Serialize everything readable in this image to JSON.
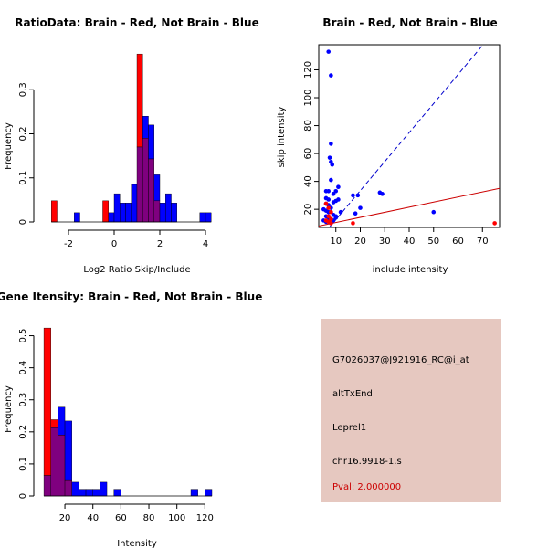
{
  "colors": {
    "brain": "#ff0000",
    "not_brain": "#0000ff",
    "overlap": "#7f007f",
    "info_bg": "#e6c8c0",
    "pval_text": "#cc0000",
    "fit_red": "#cc0000",
    "fit_blue": "#0000cc"
  },
  "chart_data": [
    {
      "id": "ratio_hist",
      "type": "histogram",
      "title": "RatioData: Brain - Red, Not Brain - Blue",
      "xlabel": "Log2 Ratio Skip/Include",
      "ylabel": "Frequency",
      "xlim": [
        -3.2,
        4.8
      ],
      "ylim": [
        0,
        0.4
      ],
      "xticks": [
        -2,
        0,
        2,
        4
      ],
      "yticks": [
        0,
        0.1,
        0.2,
        0.3
      ],
      "bin_width": 0.25,
      "series": [
        {
          "name": "Brain",
          "color": "red",
          "bins": [
            [
              -2.75,
              0.048
            ],
            [
              -0.5,
              0.048
            ],
            [
              1.0,
              0.381
            ],
            [
              1.25,
              0.19
            ],
            [
              1.5,
              0.143
            ],
            [
              1.75,
              0.048
            ]
          ]
        },
        {
          "name": "Not Brain",
          "color": "blue",
          "bins": [
            [
              -1.75,
              0.021
            ],
            [
              -0.25,
              0.021
            ],
            [
              0.0,
              0.064
            ],
            [
              0.25,
              0.043
            ],
            [
              0.5,
              0.043
            ],
            [
              0.75,
              0.085
            ],
            [
              1.0,
              0.17
            ],
            [
              1.25,
              0.24
            ],
            [
              1.5,
              0.22
            ],
            [
              1.75,
              0.107
            ],
            [
              2.0,
              0.043
            ],
            [
              2.25,
              0.064
            ],
            [
              2.5,
              0.043
            ],
            [
              3.75,
              0.021
            ],
            [
              4.0,
              0.021
            ]
          ]
        }
      ]
    },
    {
      "id": "intensity_scatter",
      "type": "scatter",
      "title": "Brain - Red, Not Brain - Blue",
      "xlabel": "include intensity",
      "ylabel": "skip intensity",
      "xlim": [
        3,
        77
      ],
      "ylim": [
        7,
        138
      ],
      "xticks": [
        10,
        20,
        30,
        40,
        50,
        60,
        70
      ],
      "yticks": [
        20,
        40,
        60,
        80,
        100,
        120
      ],
      "series": [
        {
          "name": "Not Brain",
          "color": "blue",
          "points": [
            [
              7,
              133
            ],
            [
              8,
              116
            ],
            [
              8,
              67
            ],
            [
              7.5,
              57
            ],
            [
              8,
              54
            ],
            [
              8.5,
              52
            ],
            [
              8,
              41
            ],
            [
              6,
              33
            ],
            [
              7,
              33
            ],
            [
              6,
              28
            ],
            [
              7,
              27
            ],
            [
              9,
              31
            ],
            [
              10,
              33
            ],
            [
              11,
              36
            ],
            [
              6,
              24
            ],
            [
              7,
              23
            ],
            [
              8,
              21
            ],
            [
              9,
              25
            ],
            [
              10,
              26
            ],
            [
              11,
              27
            ],
            [
              5,
              20
            ],
            [
              6,
              19
            ],
            [
              7,
              18
            ],
            [
              8,
              18
            ],
            [
              9,
              16
            ],
            [
              10,
              15
            ],
            [
              6,
              15
            ],
            [
              7,
              14
            ],
            [
              8,
              13
            ],
            [
              5,
              12
            ],
            [
              6,
              11
            ],
            [
              7,
              11
            ],
            [
              8,
              10
            ],
            [
              9,
              12
            ],
            [
              10,
              14
            ],
            [
              12,
              18
            ],
            [
              17,
              30
            ],
            [
              19,
              30
            ],
            [
              18,
              17
            ],
            [
              20,
              21
            ],
            [
              28,
              32
            ],
            [
              29,
              31
            ],
            [
              50,
              18
            ]
          ]
        },
        {
          "name": "Brain",
          "color": "red",
          "points": [
            [
              6,
              24
            ],
            [
              7,
              21
            ],
            [
              8,
              18
            ],
            [
              7,
              15
            ],
            [
              8,
              13
            ],
            [
              6,
              12
            ],
            [
              7,
              11
            ],
            [
              8,
              10
            ],
            [
              17,
              10
            ],
            [
              75,
              10
            ]
          ]
        }
      ],
      "fit_lines": [
        {
          "name": "Not Brain fit",
          "color": "blue",
          "style": "dashed",
          "from": [
            3,
            -2
          ],
          "to": [
            77,
            152
          ]
        },
        {
          "name": "Brain fit",
          "color": "red",
          "style": "solid",
          "from": [
            3,
            8
          ],
          "to": [
            77,
            35
          ]
        }
      ]
    },
    {
      "id": "intensity_hist",
      "type": "histogram",
      "title": "Gene Itensity: Brain - Red, Not Brain - Blue",
      "xlabel": "Intensity",
      "ylabel": "Frequency",
      "xlim": [
        3,
        140
      ],
      "ylim": [
        0,
        0.55
      ],
      "xticks": [
        20,
        40,
        60,
        80,
        100,
        120
      ],
      "yticks": [
        0,
        0.1,
        0.2,
        0.3,
        0.4,
        0.5
      ],
      "bin_width": 5,
      "series": [
        {
          "name": "Brain",
          "color": "red",
          "bins": [
            [
              5,
              0.524
            ],
            [
              10,
              0.238
            ],
            [
              15,
              0.19
            ],
            [
              20,
              0.048
            ]
          ]
        },
        {
          "name": "Not Brain",
          "color": "blue",
          "bins": [
            [
              5,
              0.064
            ],
            [
              10,
              0.213
            ],
            [
              15,
              0.277
            ],
            [
              20,
              0.234
            ],
            [
              25,
              0.043
            ],
            [
              30,
              0.021
            ],
            [
              35,
              0.021
            ],
            [
              40,
              0.021
            ],
            [
              45,
              0.043
            ],
            [
              55,
              0.021
            ],
            [
              110,
              0.021
            ],
            [
              120,
              0.021
            ]
          ]
        }
      ]
    }
  ],
  "info_panel": {
    "probe_id": "G7026037@J921916_RC@i_at",
    "event_type": "altTxEnd",
    "gene": "Leprel1",
    "location": "chr16.9918-1.s",
    "pval": "Pval: 2.000000"
  }
}
